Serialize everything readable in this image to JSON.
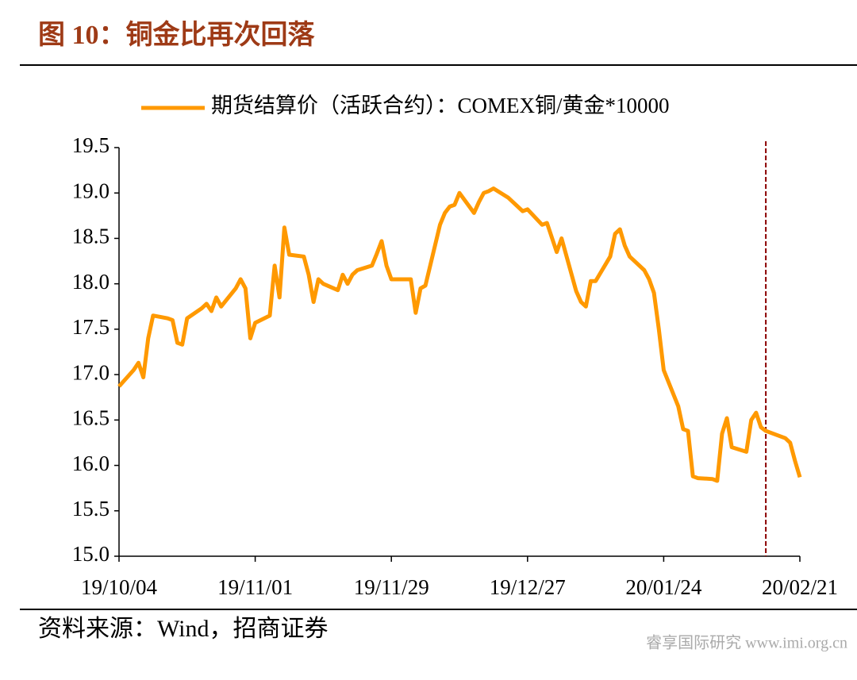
{
  "chart_data": {
    "type": "line",
    "title": "图 10：铜金比再次回落",
    "source": "资料来源：Wind，招商证券",
    "watermark": "睿享国际研究 www.imi.org.cn",
    "x": [
      "19/10/04",
      "19/10/07",
      "19/10/08",
      "19/10/09",
      "19/10/10",
      "19/10/11",
      "19/10/14",
      "19/10/15",
      "19/10/16",
      "19/10/17",
      "19/10/18",
      "19/10/21",
      "19/10/22",
      "19/10/23",
      "19/10/24",
      "19/10/25",
      "19/10/28",
      "19/10/29",
      "19/10/30",
      "19/10/31",
      "19/11/01",
      "19/11/04",
      "19/11/05",
      "19/11/06",
      "19/11/07",
      "19/11/08",
      "19/11/11",
      "19/11/12",
      "19/11/13",
      "19/11/14",
      "19/11/15",
      "19/11/18",
      "19/11/19",
      "19/11/20",
      "19/11/21",
      "19/11/22",
      "19/11/25",
      "19/11/26",
      "19/11/27",
      "19/11/28",
      "19/11/29",
      "19/12/02",
      "19/12/03",
      "19/12/04",
      "19/12/05",
      "19/12/06",
      "19/12/09",
      "19/12/10",
      "19/12/11",
      "19/12/12",
      "19/12/13",
      "19/12/16",
      "19/12/17",
      "19/12/18",
      "19/12/19",
      "19/12/20",
      "19/12/23",
      "19/12/24",
      "19/12/26",
      "19/12/27",
      "19/12/30",
      "19/12/31",
      "20/01/02",
      "20/01/03",
      "20/01/06",
      "20/01/07",
      "20/01/08",
      "20/01/09",
      "20/01/10",
      "20/01/13",
      "20/01/14",
      "20/01/15",
      "20/01/16",
      "20/01/17",
      "20/01/20",
      "20/01/21",
      "20/01/22",
      "20/01/23",
      "20/01/24",
      "20/01/27",
      "20/01/28",
      "20/01/29",
      "20/01/30",
      "20/01/31",
      "20/02/03",
      "20/02/04",
      "20/02/05",
      "20/02/06",
      "20/02/07",
      "20/02/10",
      "20/02/11",
      "20/02/12",
      "20/02/13",
      "20/02/14",
      "20/02/17",
      "20/02/18",
      "20/02/19",
      "20/02/20",
      "20/02/21"
    ],
    "series": [
      {
        "name": "期货结算价（活跃合约）：COMEX铜/黄金*10000",
        "color": "#ff9900",
        "values": [
          16.87,
          17.05,
          17.13,
          16.97,
          17.4,
          17.65,
          17.62,
          17.6,
          17.35,
          17.33,
          17.62,
          17.73,
          17.78,
          17.7,
          17.85,
          17.75,
          17.95,
          18.05,
          17.95,
          17.4,
          17.57,
          17.65,
          18.2,
          17.85,
          18.62,
          18.32,
          18.3,
          18.1,
          17.8,
          18.05,
          18.0,
          17.93,
          18.1,
          18.0,
          18.1,
          18.15,
          18.2,
          18.33,
          18.47,
          18.2,
          18.05,
          18.05,
          18.05,
          17.68,
          17.95,
          17.98,
          18.65,
          18.78,
          18.85,
          18.87,
          19.0,
          18.78,
          18.9,
          19.0,
          19.02,
          19.05,
          18.95,
          18.9,
          18.8,
          18.82,
          18.65,
          18.67,
          18.35,
          18.5,
          17.92,
          17.8,
          17.75,
          18.03,
          18.03,
          18.3,
          18.55,
          18.6,
          18.42,
          18.3,
          18.15,
          18.05,
          17.9,
          17.5,
          17.05,
          16.65,
          16.4,
          16.38,
          15.88,
          15.86,
          15.85,
          15.83,
          16.35,
          16.52,
          16.2,
          16.15,
          16.5,
          16.58,
          16.42,
          16.38,
          16.32,
          16.3,
          16.25,
          16.05,
          15.87
        ]
      }
    ],
    "xlim": [
      "19/10/04",
      "20/02/21"
    ],
    "xticks": [
      "19/10/04",
      "19/11/01",
      "19/11/29",
      "19/12/27",
      "20/01/24",
      "20/02/21"
    ],
    "ylim": [
      15.0,
      19.5
    ],
    "yticks": [
      {
        "value": 15.0,
        "label": "15.0"
      },
      15.5,
      {
        "value": 16.0,
        "label": "16.0"
      },
      16.5,
      {
        "value": 17.0,
        "label": "17.0"
      },
      17.5,
      {
        "value": 18.0,
        "label": "18.0"
      },
      18.5,
      {
        "value": 19.0,
        "label": "19.0"
      },
      19.5
    ],
    "vline": {
      "x": "20/02/14",
      "color": "#8b0000"
    },
    "grid": false,
    "legend": "top"
  }
}
